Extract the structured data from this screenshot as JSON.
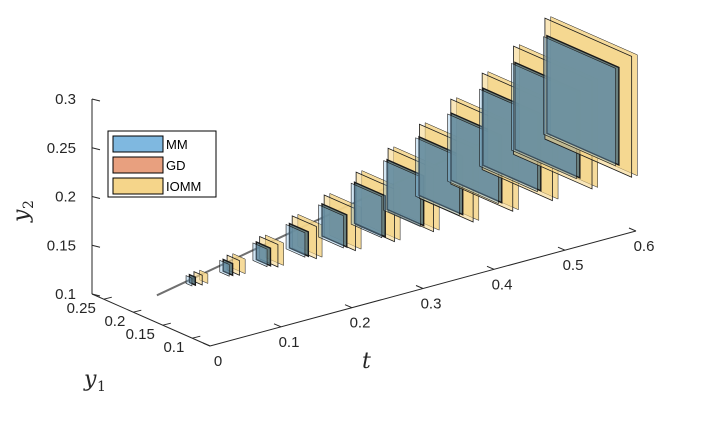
{
  "chart_data": {
    "type": "3d-box-sequence",
    "title": "",
    "axes": {
      "t": {
        "label": "t",
        "ticks": [
          "0",
          "0.1",
          "0.2",
          "0.3",
          "0.4",
          "0.5",
          "0.6"
        ],
        "range": [
          0,
          0.6
        ]
      },
      "y1": {
        "label": "y",
        "label_sub": "1",
        "ticks": [
          "0.25",
          "0.2",
          "0.15",
          "0.1"
        ],
        "range": [
          0.07,
          0.27
        ]
      },
      "y2": {
        "label": "y",
        "label_sub": "2",
        "ticks": [
          "0.3",
          "0.25",
          "0.2",
          "0.15",
          "0.1"
        ],
        "range": [
          0.1,
          0.3
        ]
      }
    },
    "legend": {
      "placement": "upper-left",
      "entries": [
        {
          "name": "MM",
          "color": "#7fb8e0"
        },
        {
          "name": "GD",
          "color": "#e8a07f"
        },
        {
          "name": "IOMM",
          "color": "#f5d58a"
        }
      ]
    },
    "series_note": "Rectangular enclosure slices at successive t values; IOMM (yellow) slices are slightly larger than MM (blue) slices.",
    "slices": [
      {
        "t": 0.05,
        "y1": [
          0.155,
          0.165
        ],
        "y2": [
          0.13,
          0.138
        ],
        "iomm_y1": [
          0.153,
          0.167
        ],
        "iomm_y2": [
          0.129,
          0.139
        ]
      },
      {
        "t": 0.1,
        "y1": [
          0.152,
          0.168
        ],
        "y2": [
          0.131,
          0.143
        ],
        "iomm_y1": [
          0.15,
          0.171
        ],
        "iomm_y2": [
          0.13,
          0.145
        ]
      },
      {
        "t": 0.15,
        "y1": [
          0.148,
          0.172
        ],
        "y2": [
          0.132,
          0.15
        ],
        "iomm_y1": [
          0.145,
          0.176
        ],
        "iomm_y2": [
          0.13,
          0.153
        ]
      },
      {
        "t": 0.2,
        "y1": [
          0.144,
          0.176
        ],
        "y2": [
          0.133,
          0.158
        ],
        "iomm_y1": [
          0.14,
          0.181
        ],
        "iomm_y2": [
          0.13,
          0.163
        ]
      },
      {
        "t": 0.25,
        "y1": [
          0.139,
          0.181
        ],
        "y2": [
          0.134,
          0.167
        ],
        "iomm_y1": [
          0.134,
          0.187
        ],
        "iomm_y2": [
          0.13,
          0.173
        ]
      },
      {
        "t": 0.3,
        "y1": [
          0.134,
          0.186
        ],
        "y2": [
          0.136,
          0.178
        ],
        "iomm_y1": [
          0.128,
          0.193
        ],
        "iomm_y2": [
          0.131,
          0.185
        ]
      },
      {
        "t": 0.35,
        "y1": [
          0.129,
          0.191
        ],
        "y2": [
          0.139,
          0.19
        ],
        "iomm_y1": [
          0.122,
          0.199
        ],
        "iomm_y2": [
          0.133,
          0.198
        ]
      },
      {
        "t": 0.4,
        "y1": [
          0.123,
          0.197
        ],
        "y2": [
          0.142,
          0.202
        ],
        "iomm_y1": [
          0.115,
          0.206
        ],
        "iomm_y2": [
          0.135,
          0.211
        ]
      },
      {
        "t": 0.45,
        "y1": [
          0.117,
          0.203
        ],
        "y2": [
          0.146,
          0.215
        ],
        "iomm_y1": [
          0.108,
          0.213
        ],
        "iomm_y2": [
          0.138,
          0.225
        ]
      },
      {
        "t": 0.5,
        "y1": [
          0.111,
          0.209
        ],
        "y2": [
          0.15,
          0.229
        ],
        "iomm_y1": [
          0.101,
          0.22
        ],
        "iomm_y2": [
          0.141,
          0.24
        ]
      },
      {
        "t": 0.55,
        "y1": [
          0.105,
          0.215
        ],
        "y2": [
          0.155,
          0.244
        ],
        "iomm_y1": [
          0.094,
          0.227
        ],
        "iomm_y2": [
          0.145,
          0.256
        ]
      },
      {
        "t": 0.6,
        "y1": [
          0.099,
          0.221
        ],
        "y2": [
          0.16,
          0.26
        ],
        "iomm_y1": [
          0.087,
          0.234
        ],
        "iomm_y2": [
          0.149,
          0.273
        ]
      }
    ],
    "trajectory": [
      {
        "t": 0.0,
        "y1": 0.16,
        "y2": 0.128
      },
      {
        "t": 0.6,
        "y1": 0.16,
        "y2": 0.215
      }
    ]
  }
}
